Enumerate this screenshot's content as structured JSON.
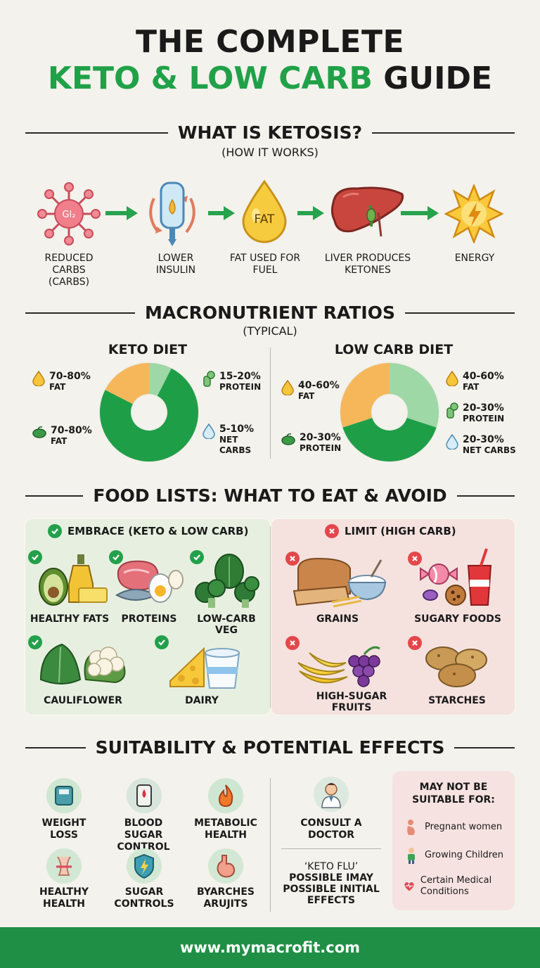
{
  "title": {
    "line1": "THE COMPLETE",
    "line2_green": "KETO & LOW CARB",
    "line2_black": "GUIDE"
  },
  "ketosis": {
    "heading": "WHAT IS KETOSIS?",
    "subheading": "(HOW IT WORKS)",
    "molecule_label": "Gl₂",
    "fat_drop_label": "FAT",
    "steps": [
      {
        "label": "REDUCED CARBS (CARBS)",
        "icon": "glucose-molecule-icon"
      },
      {
        "label": "LOWER INSULIN",
        "icon": "insulin-vial-icon"
      },
      {
        "label": "FAT USED FOR FUEL",
        "icon": "fat-drop-icon"
      },
      {
        "label": "LIVER PRODUCES KETONES",
        "icon": "liver-icon"
      },
      {
        "label": "ENERGY",
        "icon": "energy-burst-icon"
      }
    ]
  },
  "macros": {
    "heading": "MACRONUTRIENT RATIOS",
    "subheading": "(TYPICAL)",
    "keto": {
      "title": "KETO DIET",
      "legend": [
        {
          "pct": "70-80%",
          "label": "FAT",
          "icon": "fat-drop-icon"
        },
        {
          "pct": "70-80%",
          "label": "FAT",
          "icon": "bean-icon"
        },
        {
          "pct": "15-20%",
          "label": "PROTEIN",
          "icon": "protein-icon"
        },
        {
          "pct": "5-10%",
          "label": "NET CARBS",
          "icon": "carb-drop-icon"
        }
      ],
      "chart": {
        "fat": 75,
        "protein": 17.5,
        "carbs": 7.5
      }
    },
    "lowcarb": {
      "title": "LOW CARB DIET",
      "legend": [
        {
          "pct": "40-60%",
          "label": "FAT",
          "icon": "fat-drop-icon"
        },
        {
          "pct": "20-30%",
          "label": "PROTEIN",
          "icon": "bean-icon"
        },
        {
          "pct": "40-60%",
          "label": "FAT",
          "icon": "fat-drop-icon"
        },
        {
          "pct": "20-30%",
          "label": "PROTEIN",
          "icon": "protein-icon"
        },
        {
          "pct": "20-30%",
          "label": "NET CARBS",
          "icon": "carb-drop-icon"
        }
      ],
      "chart": {
        "fat": 40,
        "protein": 30,
        "carbs": 30
      }
    },
    "colors": {
      "fat": "#1f9e48",
      "protein": "#f6b75b",
      "carbs": "#9ed8a6"
    }
  },
  "foods": {
    "heading": "FOOD LISTS: WHAT TO EAT & AVOID",
    "embrace": {
      "title": "EMBRACE (KETO & LOW CARB)",
      "items": [
        "HEALTHY FATS",
        "PROTEINS",
        "LOW-CARB VEG",
        "CAULIFLOWER",
        "DAIRY"
      ]
    },
    "limit": {
      "title": "LIMIT (HIGH CARB)",
      "items": [
        "GRAINS",
        "SUGARY FOODS",
        "HIGH-SUGAR FRUITS",
        "STARCHES"
      ]
    }
  },
  "suitability": {
    "heading": "SUITABILITY & POTENTIAL EFFECTS",
    "effects": [
      {
        "label": "WEIGHT LOSS",
        "icon": "scale-icon"
      },
      {
        "label": "BLOOD SUGAR CONTROL",
        "icon": "glucose-meter-icon"
      },
      {
        "label": "METABOLIC HEALTH",
        "icon": "flame-icon"
      },
      {
        "label": "HEALTHY HEALTH",
        "icon": "waist-icon"
      },
      {
        "label": "SUGAR CONTROLS",
        "icon": "shield-bolt-icon"
      },
      {
        "label": "BYARCHES ARUJITS",
        "icon": "stomach-icon"
      }
    ],
    "consult": "CONSULT A DOCTOR",
    "keto_flu": {
      "title": "‘KETO FLU’",
      "line2": "POSSIBLE IMAY",
      "line3": "POSSIBLE INITIAL",
      "line4": "EFFECTS"
    },
    "not_suitable": {
      "title": "MAY NOT BE SUITABLE FOR:",
      "items": [
        "Pregnant women",
        "Growing Children",
        "Certain Medical Conditions"
      ]
    }
  },
  "footer": {
    "url": "www.mymacrofit.com"
  }
}
